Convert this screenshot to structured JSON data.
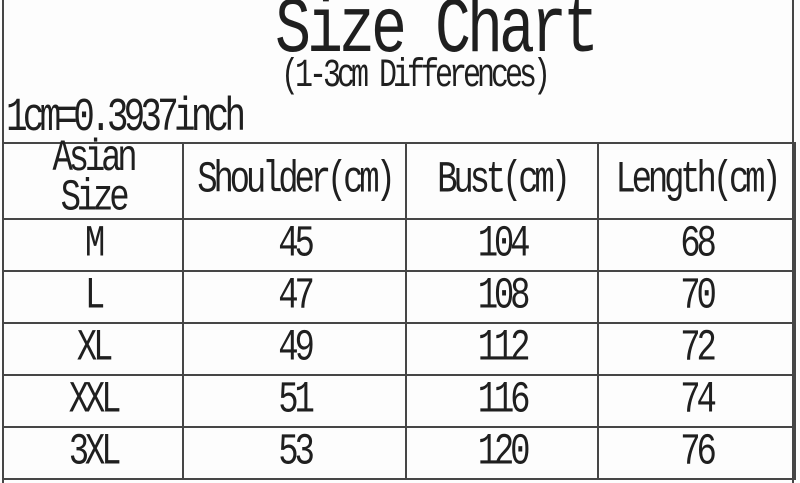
{
  "header": {
    "title": "Size Chart",
    "subtitle": "(1-3cm Differences)",
    "note": "1cm=0.3937inch"
  },
  "chart_data": {
    "type": "table",
    "title": "Size Chart",
    "subtitle": "(1-3cm Differences)",
    "note": "1cm=0.3937inch",
    "columns": [
      "Asian Size",
      "Shoulder(cm)",
      "Bust(cm)",
      "Length(cm)"
    ],
    "rows": [
      [
        "M",
        "45",
        "104",
        "68"
      ],
      [
        "L",
        "47",
        "108",
        "70"
      ],
      [
        "XL",
        "49",
        "112",
        "72"
      ],
      [
        "XXL",
        "51",
        "116",
        "74"
      ],
      [
        "3XL",
        "53",
        "120",
        "76"
      ]
    ]
  },
  "colors": {
    "background": "#fdfdfd",
    "text": "#1f1f1f",
    "border": "#464646"
  }
}
